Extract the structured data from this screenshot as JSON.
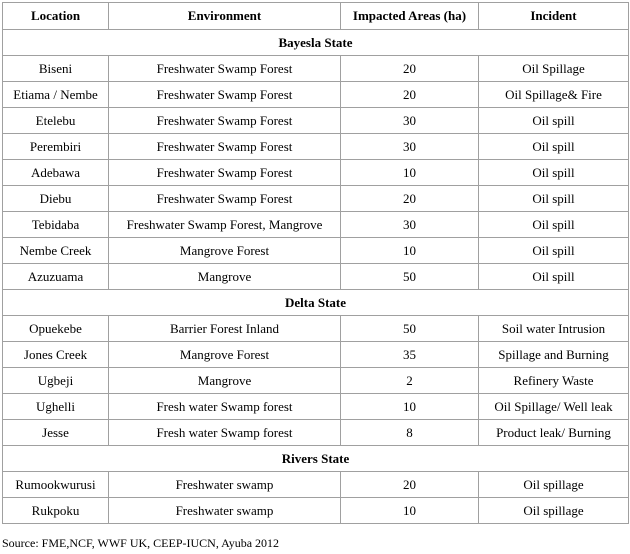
{
  "table": {
    "columns": [
      "Location",
      "Environment",
      "Impacted Areas (ha)",
      "Incident"
    ],
    "sections": [
      {
        "title": "Bayesla State",
        "rows": [
          [
            "Biseni",
            "Freshwater Swamp Forest",
            20,
            "Oil Spillage"
          ],
          [
            "Etiama / Nembe",
            "Freshwater Swamp Forest",
            20,
            "Oil Spillage& Fire"
          ],
          [
            "Etelebu",
            "Freshwater Swamp Forest",
            30,
            "Oil spill"
          ],
          [
            "Perembiri",
            "Freshwater Swamp Forest",
            30,
            "Oil spill"
          ],
          [
            "Adebawa",
            "Freshwater Swamp Forest",
            10,
            "Oil spill"
          ],
          [
            "Diebu",
            "Freshwater Swamp Forest",
            20,
            "Oil spill"
          ],
          [
            "Tebidaba",
            "Freshwater Swamp Forest, Mangrove",
            30,
            "Oil spill"
          ],
          [
            "Nembe Creek",
            "Mangrove Forest",
            10,
            "Oil spill"
          ],
          [
            "Azuzuama",
            "Mangrove",
            50,
            "Oil spill"
          ]
        ]
      },
      {
        "title": "Delta State",
        "rows": [
          [
            "Opuekebe",
            "Barrier Forest Inland",
            50,
            "Soil water Intrusion"
          ],
          [
            "Jones Creek",
            "Mangrove Forest",
            35,
            "Spillage and Burning"
          ],
          [
            "Ugbeji",
            "Mangrove",
            2,
            "Refinery Waste"
          ],
          [
            "Ughelli",
            "Fresh water Swamp forest",
            10,
            "Oil Spillage/ Well leak"
          ],
          [
            "Jesse",
            "Fresh water Swamp forest",
            8,
            "Product leak/ Burning"
          ]
        ]
      },
      {
        "title": "Rivers State",
        "rows": [
          [
            "Rumookwurusi",
            "Freshwater swamp",
            20,
            "Oil spillage"
          ],
          [
            "Rukpoku",
            "Freshwater swamp",
            10,
            "Oil spillage"
          ]
        ]
      }
    ]
  },
  "source": "Source: FME,NCF, WWF UK, CEEP-IUCN, Ayuba 2012"
}
